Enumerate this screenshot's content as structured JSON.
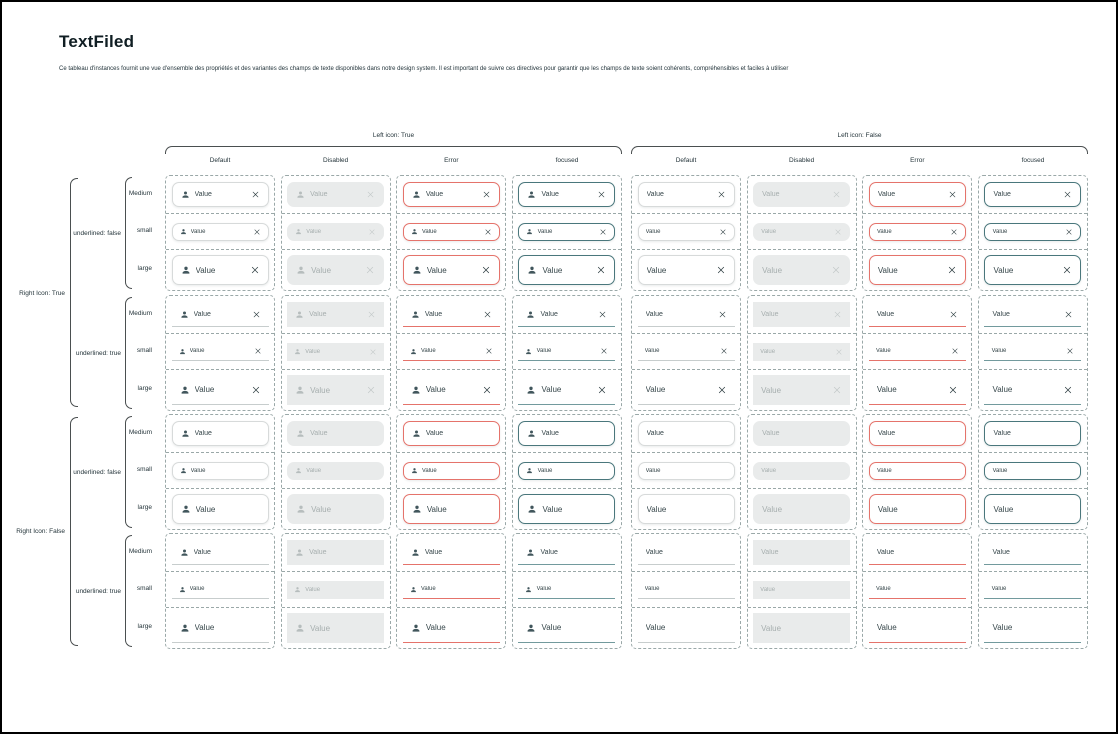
{
  "page": {
    "title": "TextFiled",
    "description": "Ce tableau d'instances fournit une vue d'ensemble des propriétés et des variantes des champs de texte disponibles dans notre design system. Il est important de suivre ces directives pour garantir que les champs de texte soient cohérents, compréhensibles et faciles à utiliser"
  },
  "matrix": {
    "column_groups": [
      {
        "label": "Left icon: True",
        "left_icon": true
      },
      {
        "label": "Left icon: False",
        "left_icon": false
      }
    ],
    "states": [
      {
        "label": "Default",
        "key": "default"
      },
      {
        "label": "Disabled",
        "key": "disabled"
      },
      {
        "label": "Error",
        "key": "error"
      },
      {
        "label": "focused",
        "key": "focused"
      }
    ],
    "row_groups": [
      {
        "label": "Right Icon: True",
        "right_icon": true
      },
      {
        "label": "Right Icon: False",
        "right_icon": false
      }
    ],
    "underline_variants": [
      {
        "label": "underlined: false",
        "underlined": false
      },
      {
        "label": "underlined: true",
        "underlined": true
      }
    ],
    "sizes": [
      {
        "label": "Medium",
        "key": "medium"
      },
      {
        "label": "small",
        "key": "small"
      },
      {
        "label": "large",
        "key": "large"
      }
    ],
    "field": {
      "value": "Value",
      "left_icon_name": "person-icon",
      "right_icon_name": "clear-icon"
    }
  },
  "colors": {
    "accent_focused": "#4a777c",
    "error": "#e5736b",
    "disabled_bg": "#e9ebeb",
    "border_default": "#d7dada",
    "dashed_grid": "#9aa8a8"
  }
}
